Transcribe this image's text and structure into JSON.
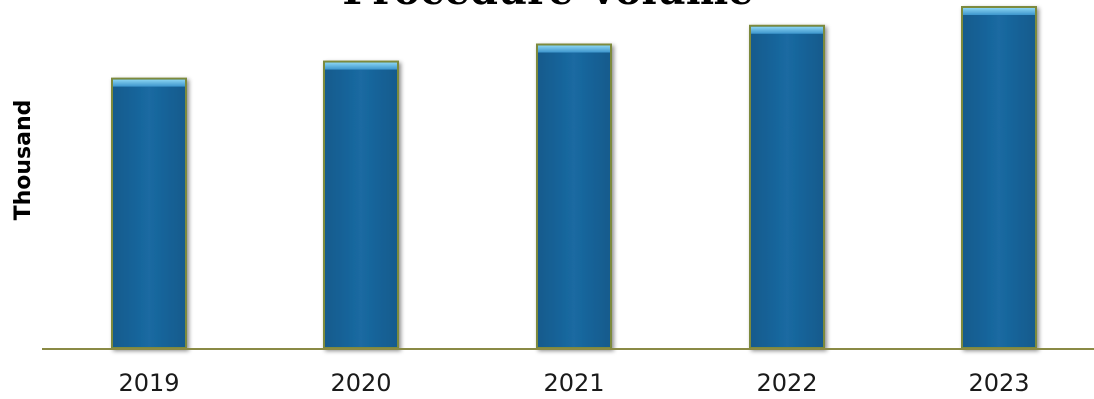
{
  "chart_data": {
    "type": "bar",
    "title": "Procedure Volume",
    "xlabel": "",
    "ylabel": "Thousand",
    "categories": [
      "2019",
      "2020",
      "2021",
      "2022",
      "2023"
    ],
    "values": [
      79,
      84,
      89,
      94.5,
      100
    ],
    "ylim": [
      0,
      100
    ],
    "grid": false,
    "legend": "none",
    "colors": {
      "bar": "#1a6aa2",
      "bar_top": "#6cc0e6",
      "bar_edge": "#7d8a3c",
      "axis": "#8a8a45"
    }
  }
}
